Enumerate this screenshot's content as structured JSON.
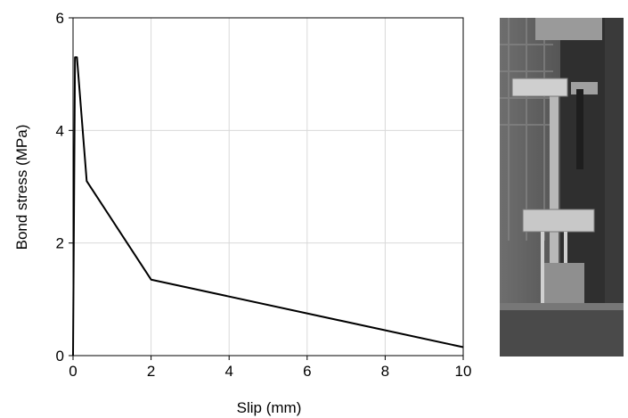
{
  "chart_data": {
    "type": "line",
    "title": "",
    "xlabel": "Slip (mm)",
    "ylabel": "Bond stress (MPa)",
    "xlim": [
      0,
      10
    ],
    "ylim": [
      0,
      6
    ],
    "xticks": [
      "0",
      "2",
      "4",
      "6",
      "8",
      "10"
    ],
    "yticks": [
      "0",
      "2",
      "4",
      "6"
    ],
    "grid": "major gridlines on both axes",
    "legend": "none",
    "series": [
      {
        "x": [
          0.0,
          0.05,
          0.1,
          0.35,
          2.0,
          10.0
        ],
        "y": [
          0.0,
          5.3,
          5.3,
          3.1,
          1.35,
          0.15
        ]
      }
    ],
    "colors": {
      "line": "#000000",
      "grid": "#d9d9d9",
      "axis": "#000000"
    }
  },
  "photo": {
    "description_icon": "test-rig-photo"
  }
}
